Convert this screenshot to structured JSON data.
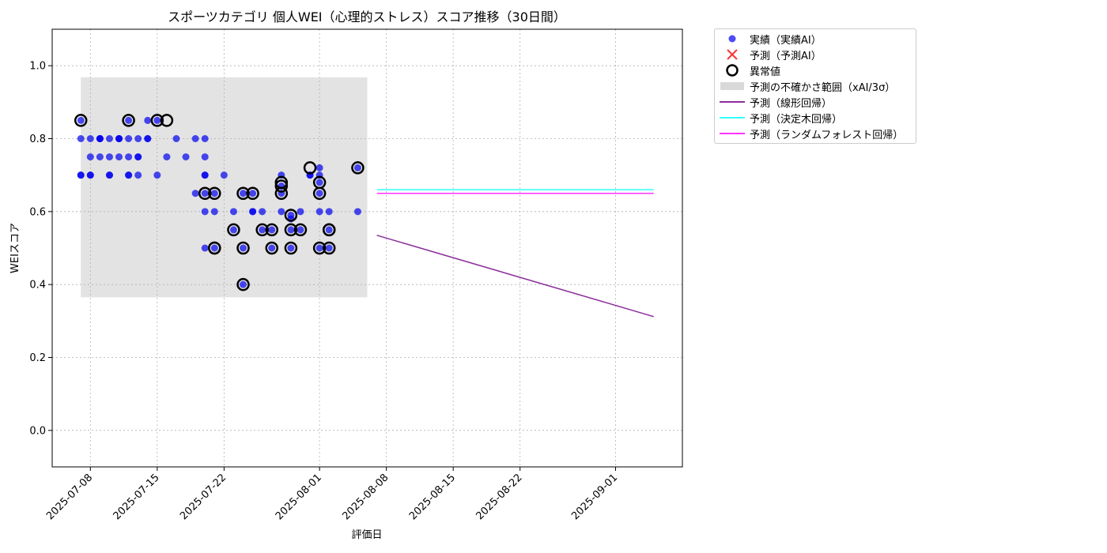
{
  "chart_data": {
    "type": "scatter",
    "title": "スポーツカテゴリ 個人WEI（心理的ストレス）スコア推移（30日間）",
    "xlabel": "評価日",
    "ylabel": "WEIスコア",
    "xlim": [
      "2025-07-04",
      "2025-09-08"
    ],
    "ylim": [
      -0.1,
      1.1
    ],
    "x_ticks": [
      "2025-07-08",
      "2025-07-15",
      "2025-07-22",
      "2025-08-01",
      "2025-08-08",
      "2025-08-15",
      "2025-08-22",
      "2025-09-01"
    ],
    "y_ticks": [
      "0.0",
      "0.2",
      "0.4",
      "0.6",
      "0.8",
      "1.0"
    ],
    "grid": true,
    "legend_position": "outside upper right",
    "legend": [
      {
        "key": "actual",
        "label": "実績（実績AI）"
      },
      {
        "key": "predicted",
        "label": "予測（予測AI）"
      },
      {
        "key": "anomaly",
        "label": "異常値"
      },
      {
        "key": "uncertainty",
        "label": "予測の不確かさ範囲（xAI/3σ）"
      },
      {
        "key": "linear",
        "label": "予測（線形回帰）"
      },
      {
        "key": "tree",
        "label": "予測（決定木回帰）"
      },
      {
        "key": "forest",
        "label": "予測（ランダムフォレスト回帰）"
      }
    ],
    "colors": {
      "actual": "#0000ee",
      "predicted": "#ff3333",
      "anomaly": "#000000",
      "uncertainty": "#d9d9d9",
      "linear": "#8b2e9b",
      "tree": "#33ffff",
      "forest": "#ff33ff"
    },
    "uncertainty_band": {
      "x_start": "2025-07-07",
      "x_end": "2025-08-06",
      "y_low": 0.365,
      "y_high": 0.968
    },
    "series": [
      {
        "name": "予測（線形回帰）",
        "points": [
          [
            "2025-08-07",
            0.535
          ],
          [
            "2025-09-05",
            0.312
          ]
        ]
      },
      {
        "name": "予測（決定木回帰）",
        "points": [
          [
            "2025-08-07",
            0.66
          ],
          [
            "2025-09-05",
            0.66
          ]
        ]
      },
      {
        "name": "予測（ランダムフォレスト回帰）",
        "points": [
          [
            "2025-08-07",
            0.65
          ],
          [
            "2025-09-05",
            0.65
          ]
        ]
      }
    ],
    "actual_points": [
      [
        "2025-07-07",
        0.85
      ],
      [
        "2025-07-07",
        0.7
      ],
      [
        "2025-07-07",
        0.8
      ],
      [
        "2025-07-07",
        0.7
      ],
      [
        "2025-07-08",
        0.75
      ],
      [
        "2025-07-08",
        0.7
      ],
      [
        "2025-07-08",
        0.8
      ],
      [
        "2025-07-08",
        0.7
      ],
      [
        "2025-07-09",
        0.8
      ],
      [
        "2025-07-09",
        0.75
      ],
      [
        "2025-07-09",
        0.8
      ],
      [
        "2025-07-09",
        0.8
      ],
      [
        "2025-07-10",
        0.7
      ],
      [
        "2025-07-10",
        0.8
      ],
      [
        "2025-07-10",
        0.75
      ],
      [
        "2025-07-10",
        0.7
      ],
      [
        "2025-07-11",
        0.8
      ],
      [
        "2025-07-11",
        0.8
      ],
      [
        "2025-07-11",
        0.75
      ],
      [
        "2025-07-11",
        0.8
      ],
      [
        "2025-07-12",
        0.7
      ],
      [
        "2025-07-12",
        0.7
      ],
      [
        "2025-07-12",
        0.75
      ],
      [
        "2025-07-12",
        0.8
      ],
      [
        "2025-07-12",
        0.85
      ],
      [
        "2025-07-13",
        0.75
      ],
      [
        "2025-07-13",
        0.75
      ],
      [
        "2025-07-13",
        0.8
      ],
      [
        "2025-07-13",
        0.7
      ],
      [
        "2025-07-14",
        0.8
      ],
      [
        "2025-07-14",
        0.8
      ],
      [
        "2025-07-14",
        0.85
      ],
      [
        "2025-07-15",
        0.7
      ],
      [
        "2025-07-15",
        0.85
      ],
      [
        "2025-07-16",
        0.75
      ],
      [
        "2025-07-17",
        0.8
      ],
      [
        "2025-07-18",
        0.75
      ],
      [
        "2025-07-19",
        0.8
      ],
      [
        "2025-07-19",
        0.65
      ],
      [
        "2025-07-20",
        0.7
      ],
      [
        "2025-07-20",
        0.75
      ],
      [
        "2025-07-20",
        0.7
      ],
      [
        "2025-07-20",
        0.6
      ],
      [
        "2025-07-20",
        0.65
      ],
      [
        "2025-07-20",
        0.8
      ],
      [
        "2025-07-20",
        0.5
      ],
      [
        "2025-07-21",
        0.65
      ],
      [
        "2025-07-21",
        0.6
      ],
      [
        "2025-07-21",
        0.5
      ],
      [
        "2025-07-22",
        0.7
      ],
      [
        "2025-07-23",
        0.6
      ],
      [
        "2025-07-23",
        0.55
      ],
      [
        "2025-07-24",
        0.65
      ],
      [
        "2025-07-24",
        0.5
      ],
      [
        "2025-07-24",
        0.4
      ],
      [
        "2025-07-25",
        0.6
      ],
      [
        "2025-07-25",
        0.65
      ],
      [
        "2025-07-25",
        0.6
      ],
      [
        "2025-07-26",
        0.55
      ],
      [
        "2025-07-26",
        0.6
      ],
      [
        "2025-07-27",
        0.5
      ],
      [
        "2025-07-27",
        0.55
      ],
      [
        "2025-07-28",
        0.67
      ],
      [
        "2025-07-28",
        0.7
      ],
      [
        "2025-07-28",
        0.65
      ],
      [
        "2025-07-28",
        0.6
      ],
      [
        "2025-07-29",
        0.55
      ],
      [
        "2025-07-29",
        0.59
      ],
      [
        "2025-07-29",
        0.5
      ],
      [
        "2025-07-29",
        0.58
      ],
      [
        "2025-07-30",
        0.6
      ],
      [
        "2025-07-30",
        0.55
      ],
      [
        "2025-07-31",
        0.7
      ],
      [
        "2025-07-31",
        0.7
      ],
      [
        "2025-08-01",
        0.72
      ],
      [
        "2025-08-01",
        0.7
      ],
      [
        "2025-08-01",
        0.65
      ],
      [
        "2025-08-01",
        0.6
      ],
      [
        "2025-08-01",
        0.5
      ],
      [
        "2025-08-01",
        0.68
      ],
      [
        "2025-08-02",
        0.55
      ],
      [
        "2025-08-02",
        0.6
      ],
      [
        "2025-08-02",
        0.5
      ],
      [
        "2025-08-05",
        0.72
      ],
      [
        "2025-08-05",
        0.6
      ]
    ],
    "anomaly_points": [
      [
        "2025-07-07",
        0.85
      ],
      [
        "2025-07-12",
        0.85
      ],
      [
        "2025-07-15",
        0.85
      ],
      [
        "2025-07-16",
        0.85
      ],
      [
        "2025-07-20",
        0.65
      ],
      [
        "2025-07-21",
        0.65
      ],
      [
        "2025-07-21",
        0.5
      ],
      [
        "2025-07-21",
        0.5
      ],
      [
        "2025-07-23",
        0.55
      ],
      [
        "2025-07-24",
        0.65
      ],
      [
        "2025-07-24",
        0.5
      ],
      [
        "2025-07-24",
        0.4
      ],
      [
        "2025-07-25",
        0.65
      ],
      [
        "2025-07-26",
        0.55
      ],
      [
        "2025-07-27",
        0.5
      ],
      [
        "2025-07-27",
        0.55
      ],
      [
        "2025-07-28",
        0.68
      ],
      [
        "2025-07-28",
        0.67
      ],
      [
        "2025-07-28",
        0.65
      ],
      [
        "2025-07-29",
        0.59
      ],
      [
        "2025-07-29",
        0.55
      ],
      [
        "2025-07-29",
        0.5
      ],
      [
        "2025-07-30",
        0.55
      ],
      [
        "2025-07-31",
        0.72
      ],
      [
        "2025-08-01",
        0.65
      ],
      [
        "2025-08-01",
        0.68
      ],
      [
        "2025-08-01",
        0.5
      ],
      [
        "2025-08-02",
        0.55
      ],
      [
        "2025-08-02",
        0.55
      ],
      [
        "2025-08-02",
        0.5
      ],
      [
        "2025-08-05",
        0.72
      ]
    ]
  }
}
